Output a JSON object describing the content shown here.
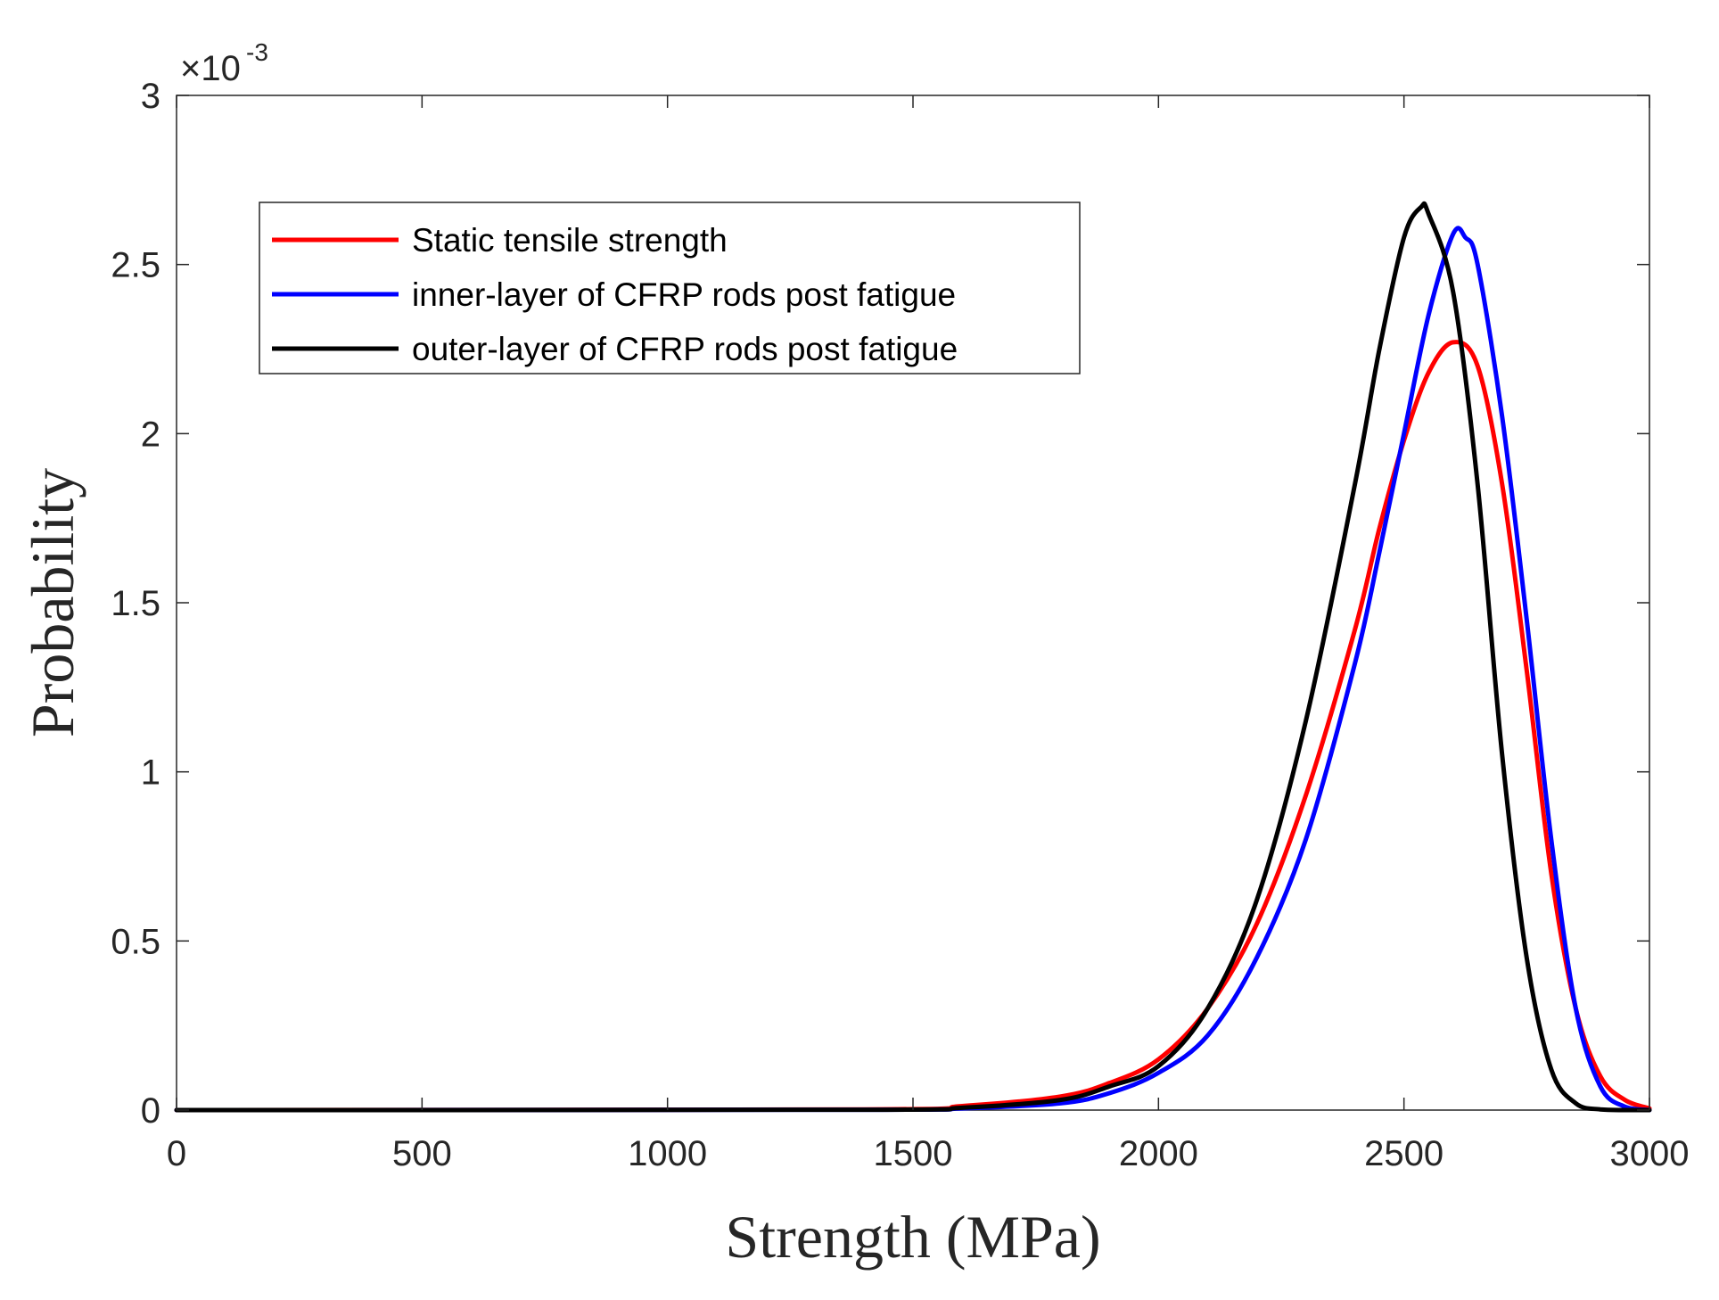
{
  "chart_data": {
    "type": "line",
    "xlabel": "Strength (MPa)",
    "ylabel": "Probability",
    "xlim": [
      0,
      3000
    ],
    "ylim": [
      0,
      3
    ],
    "y_exponent_base": "×10",
    "y_exponent_power": "-3",
    "x_ticks": [
      0,
      500,
      1000,
      1500,
      2000,
      2500,
      3000
    ],
    "y_ticks": [
      0,
      0.5,
      1,
      1.5,
      2,
      2.5,
      3
    ],
    "y_tick_labels": [
      "0",
      "0.5",
      "1",
      "1.5",
      "2",
      "2.5",
      "3"
    ],
    "legend_position": "upper-left",
    "grid": false,
    "series": [
      {
        "name": "Static tensile strength",
        "color": "#ff0000",
        "x": [
          0,
          1400,
          1600,
          1800,
          1900,
          2000,
          2100,
          2200,
          2300,
          2400,
          2450,
          2500,
          2550,
          2600,
          2650,
          2700,
          2750,
          2800,
          2850,
          2900,
          2950,
          3000
        ],
        "y": [
          0,
          0.002,
          0.012,
          0.04,
          0.08,
          0.15,
          0.3,
          0.55,
          0.93,
          1.42,
          1.72,
          1.98,
          2.18,
          2.27,
          2.2,
          1.85,
          1.3,
          0.7,
          0.3,
          0.1,
          0.03,
          0.005
        ]
      },
      {
        "name": "inner-layer of CFRP rods post fatigue",
        "color": "#0000ff",
        "x": [
          0,
          1400,
          1600,
          1800,
          1900,
          2000,
          2100,
          2200,
          2300,
          2400,
          2450,
          2500,
          2550,
          2600,
          2625,
          2650,
          2700,
          2750,
          2800,
          2850,
          2900,
          2950,
          3000
        ],
        "y": [
          0,
          0.001,
          0.005,
          0.02,
          0.05,
          0.11,
          0.22,
          0.45,
          0.8,
          1.32,
          1.65,
          2.0,
          2.35,
          2.59,
          2.58,
          2.5,
          2.05,
          1.45,
          0.8,
          0.3,
          0.07,
          0.01,
          0.0
        ]
      },
      {
        "name": "outer-layer of CFRP rods post fatigue",
        "color": "#000000",
        "x": [
          0,
          1400,
          1600,
          1800,
          1900,
          2000,
          2100,
          2200,
          2300,
          2400,
          2450,
          2500,
          2535,
          2550,
          2600,
          2650,
          2700,
          2750,
          2800,
          2850,
          2900,
          2950,
          3000
        ],
        "y": [
          0,
          0.001,
          0.007,
          0.03,
          0.07,
          0.13,
          0.3,
          0.62,
          1.15,
          1.85,
          2.25,
          2.58,
          2.67,
          2.65,
          2.42,
          1.85,
          1.05,
          0.45,
          0.12,
          0.02,
          0.002,
          0.0,
          0.0
        ]
      }
    ]
  }
}
